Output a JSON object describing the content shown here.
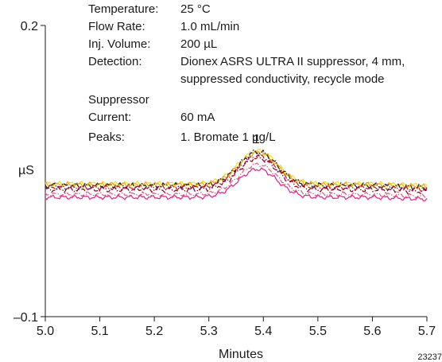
{
  "conditions": {
    "temperature": {
      "label": "Temperature:",
      "value": "25 °C"
    },
    "flow_rate": {
      "label": "Flow Rate:",
      "value": "1.0 mL/min"
    },
    "inj_volume": {
      "label": "Inj. Volume:",
      "value": "200 µL"
    },
    "detection": {
      "label": "Detection:",
      "value": "Dionex ASRS ULTRA II suppressor, 4 mm,",
      "value_line2": "suppressed conductivity, recycle mode"
    },
    "suppressor": {
      "label": "Suppressor"
    },
    "current": {
      "label": "Current:",
      "value": "60 mA"
    },
    "peaks": {
      "label": "Peaks:",
      "value": "1. Bromate  1 µg/L"
    }
  },
  "figure_id": "23237",
  "chart_data": {
    "type": "line",
    "title": "",
    "xlabel": "Minutes",
    "ylabel": "µS",
    "xlim": [
      5.0,
      5.7
    ],
    "ylim": [
      -0.1,
      0.2
    ],
    "x_ticks": [
      5.0,
      5.1,
      5.2,
      5.3,
      5.4,
      5.5,
      5.6,
      5.7
    ],
    "x_tick_labels": [
      "5.0",
      "5.1",
      "5.2",
      "5.3",
      "5.4",
      "5.5",
      "5.6",
      "5.7"
    ],
    "y_ticks": [
      -0.1,
      0.2
    ],
    "y_tick_labels": [
      "–0.1",
      "0.2"
    ],
    "grid": false,
    "peak_annotation": {
      "label": "1",
      "x": 5.39,
      "y": 0.072
    },
    "series": [
      {
        "color": "#f5e000",
        "baseline": 0.037,
        "peak": 0.071,
        "noise": 0.0016
      },
      {
        "color": "#f0a030",
        "baseline": 0.036,
        "peak": 0.069,
        "noise": 0.0018
      },
      {
        "color": "#1a1a1a",
        "baseline": 0.035,
        "peak": 0.07,
        "noise": 0.002,
        "dashed": true
      },
      {
        "color": "#c0182f",
        "baseline": 0.033,
        "peak": 0.065,
        "noise": 0.0018,
        "dashed": true
      },
      {
        "color": "#800020",
        "baseline": 0.031,
        "peak": 0.064,
        "noise": 0.002,
        "dashed": true
      },
      {
        "color": "#e05a80",
        "baseline": 0.026,
        "peak": 0.057,
        "noise": 0.0014,
        "dashed": true
      },
      {
        "color": "#e0208c",
        "baseline": 0.023,
        "peak": 0.052,
        "noise": 0.0015
      }
    ],
    "peak_center": 5.39,
    "peak_width": 0.035
  }
}
